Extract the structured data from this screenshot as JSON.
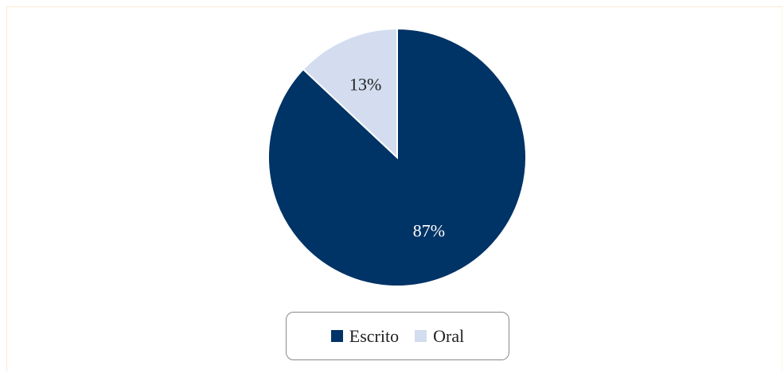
{
  "chart_data": {
    "type": "pie",
    "categories": [
      "Escrito",
      "Oral"
    ],
    "values": [
      87,
      13
    ],
    "labels": [
      "87%",
      "13%"
    ],
    "colors": [
      "#003366",
      "#d3ddef"
    ],
    "label_colors": [
      "#ffffff",
      "#222222"
    ],
    "legend_position": "bottom"
  },
  "legend": {
    "items": [
      {
        "label": "Escrito",
        "color": "#003366"
      },
      {
        "label": "Oral",
        "color": "#d3ddef"
      }
    ]
  }
}
